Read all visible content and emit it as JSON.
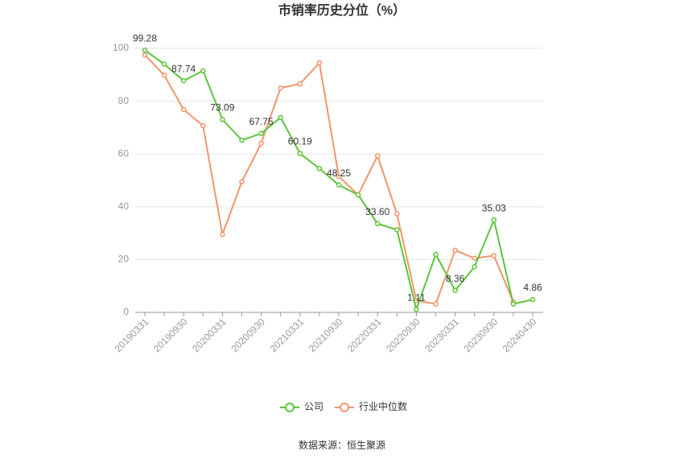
{
  "chart_data": {
    "type": "line",
    "title": "市销率历史分位（%）",
    "categories": [
      "20190331",
      null,
      "20190930",
      null,
      "20200331",
      null,
      "20200930",
      null,
      "20210331",
      null,
      "20210930",
      null,
      "20220331",
      null,
      "20220930",
      null,
      "20230331",
      null,
      "20230930",
      null,
      "20240430"
    ],
    "series": [
      {
        "name": "公司",
        "color": "#5cc43a",
        "values": [
          99.28,
          94,
          87.74,
          91.5,
          73.09,
          65.2,
          67.75,
          73.8,
          60.19,
          54.5,
          48.25,
          44.5,
          33.6,
          31.3,
          1.11,
          22,
          8.36,
          17.3,
          35.03,
          3.2,
          4.86
        ],
        "value_labels": [
          "99.28",
          null,
          "87.74",
          null,
          "73.09",
          null,
          "67.75",
          null,
          "60.19",
          null,
          "48.25",
          null,
          "33.60",
          null,
          "1.11",
          null,
          "8.36",
          null,
          "35.03",
          null,
          "4.86"
        ]
      },
      {
        "name": "行业中位数",
        "color": "#f2956c",
        "values": [
          97.5,
          89.8,
          76.8,
          70.7,
          29.5,
          49.5,
          64,
          85,
          86.5,
          94.5,
          51.5,
          44.5,
          59.3,
          37.3,
          4.5,
          3.2,
          23.5,
          20.5,
          21.5,
          4,
          null
        ]
      }
    ],
    "ylim": [
      0,
      100
    ],
    "yticks": [
      0,
      20,
      40,
      60,
      80,
      100
    ],
    "grid": true,
    "source": "数据来源：恒生聚源"
  }
}
